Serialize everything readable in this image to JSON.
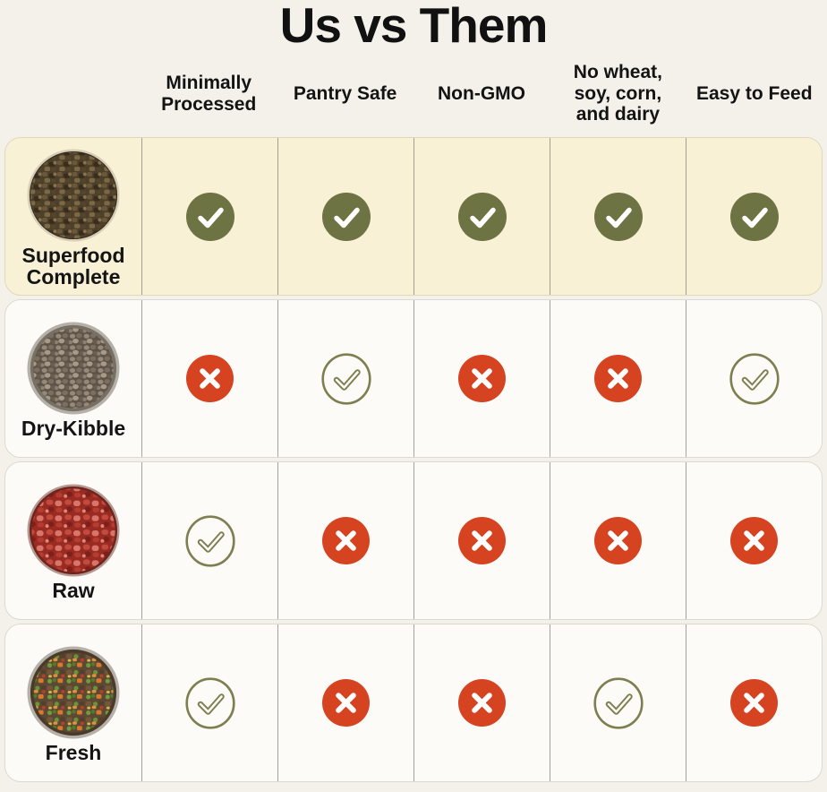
{
  "title": "Us vs Them",
  "columns": [
    "Minimally Processed",
    "Pantry Safe",
    "Non-GMO",
    "No wheat, soy, corn, and dairy",
    "Easy to Feed"
  ],
  "rows": [
    {
      "label": "Superfood Complete",
      "highlight": true,
      "image": "superfood-complete-bowl",
      "cells": [
        "check-circle-filled",
        "check-circle-filled",
        "check-circle-filled",
        "check-circle-filled",
        "check-circle-filled"
      ]
    },
    {
      "label": "Dry-Kibble",
      "highlight": false,
      "image": "dry-kibble-bowl",
      "cells": [
        "x-circle",
        "check-circle-outline",
        "x-circle",
        "x-circle",
        "check-circle-outline"
      ]
    },
    {
      "label": "Raw",
      "highlight": false,
      "image": "raw-bowl",
      "cells": [
        "check-circle-outline",
        "x-circle",
        "x-circle",
        "x-circle",
        "x-circle"
      ]
    },
    {
      "label": "Fresh",
      "highlight": false,
      "image": "fresh-bowl",
      "cells": [
        "check-circle-outline",
        "x-circle",
        "x-circle",
        "check-circle-outline",
        "x-circle"
      ]
    }
  ],
  "colors": {
    "check_filled": "#6e7343",
    "check_outline": "#7c7f4f",
    "x_circle": "#d54320",
    "highlight_row_bg": "#f8f1d6",
    "card_bg": "#fcfbf7",
    "page_bg": "#f3f1ea",
    "text": "#141414"
  }
}
